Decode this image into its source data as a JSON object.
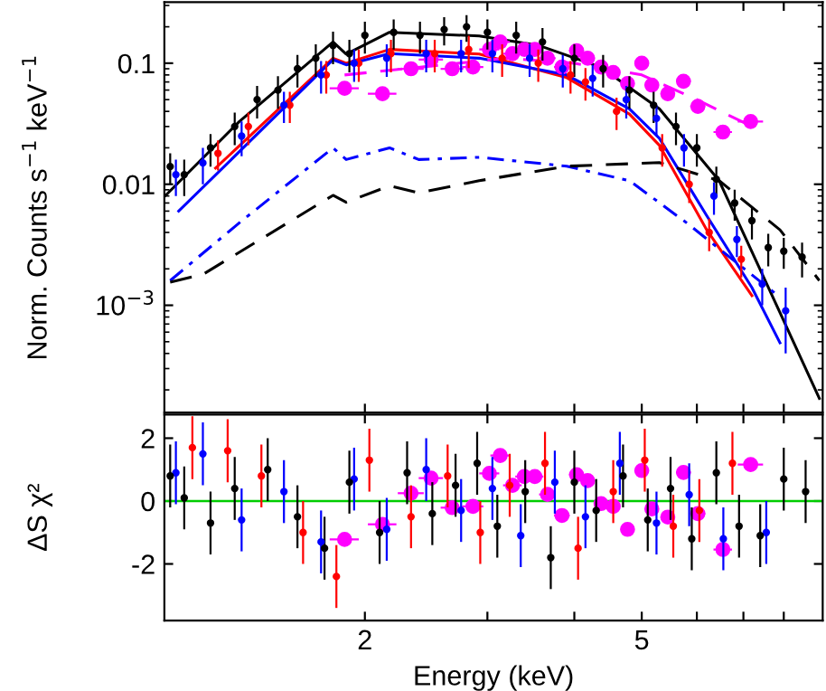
{
  "chart_data": [
    {
      "type": "line",
      "ylabel": "Norm. Counts s$^{−1}$ keV$^{−1}$",
      "log": "xy",
      "xlim": [
        1.03,
        9.1
      ],
      "ylim": [
        0.00013,
        0.32
      ],
      "xticks": [
        {
          "value": 2,
          "label": null
        },
        {
          "value": 3,
          "label": null
        },
        {
          "value": 4,
          "label": null
        },
        {
          "value": 5,
          "label": null
        },
        {
          "value": 6,
          "label": null
        },
        {
          "value": 7,
          "label": null
        },
        {
          "value": 8,
          "label": null
        }
      ],
      "yticks": [
        {
          "value": 0.001,
          "label": "10$^{−3}$"
        },
        0.01,
        0.1
      ],
      "tick_labels": "y",
      "grid": false,
      "legend": false,
      "series": [
        {
          "type": "scatter",
          "marker": "circle",
          "color": "#ff0000",
          "x": [
            1.23,
            1.36,
            1.56,
            1.76,
            1.96,
            2.18,
            2.52,
            2.82,
            3.15,
            3.55,
            3.95,
            4.15,
            4.6,
            5.35,
            5.85,
            6.25,
            6.95
          ],
          "values": [
            0.018,
            0.03,
            0.045,
            0.08,
            0.1,
            0.12,
            0.12,
            0.13,
            0.11,
            0.1,
            0.08,
            0.07,
            0.04,
            0.02,
            0.01,
            0.004,
            0.0024
          ],
          "errors": [
            0.005,
            0.009,
            0.013,
            0.024,
            0.03,
            0.036,
            0.036,
            0.039,
            0.033,
            0.03,
            0.024,
            0.021,
            0.012,
            0.006,
            0.003,
            0.0012,
            0.0007
          ]
        },
        {
          "type": "scatter",
          "marker": "circle",
          "color": "#0000ff",
          "x": [
            1.07,
            1.17,
            1.33,
            1.53,
            1.73,
            1.93,
            2.15,
            2.45,
            2.75,
            3.05,
            3.45,
            3.85,
            4.25,
            4.75,
            5.25,
            5.75,
            6.35,
            6.85,
            7.45,
            8.05
          ],
          "values": [
            0.012,
            0.015,
            0.025,
            0.045,
            0.08,
            0.1,
            0.11,
            0.12,
            0.12,
            0.12,
            0.11,
            0.09,
            0.075,
            0.05,
            0.035,
            0.02,
            0.008,
            0.0035,
            0.0015,
            0.0009
          ],
          "errors": [
            0.004,
            0.005,
            0.008,
            0.013,
            0.024,
            0.03,
            0.033,
            0.036,
            0.036,
            0.036,
            0.033,
            0.027,
            0.022,
            0.015,
            0.01,
            0.006,
            0.0024,
            0.001,
            0.0005,
            0.0005
          ]
        },
        {
          "type": "scatter",
          "marker": "circle",
          "color": "#000000",
          "x": [
            1.05,
            1.1,
            1.2,
            1.3,
            1.4,
            1.5,
            1.6,
            1.7,
            1.8,
            1.9,
            2.0,
            2.2,
            2.4,
            2.6,
            2.8,
            3.0,
            3.3,
            3.6,
            4.0,
            4.4,
            4.8,
            5.2,
            5.6,
            6.0,
            6.4,
            6.8,
            7.2,
            7.6,
            8.0,
            8.5
          ],
          "values": [
            0.014,
            0.012,
            0.02,
            0.03,
            0.05,
            0.06,
            0.09,
            0.11,
            0.14,
            0.12,
            0.17,
            0.18,
            0.17,
            0.19,
            0.2,
            0.18,
            0.17,
            0.15,
            0.11,
            0.09,
            0.06,
            0.045,
            0.03,
            0.02,
            0.011,
            0.007,
            0.005,
            0.003,
            0.0028,
            0.0025
          ],
          "errors": [
            0.004,
            0.004,
            0.006,
            0.009,
            0.015,
            0.018,
            0.027,
            0.033,
            0.042,
            0.036,
            0.05,
            0.05,
            0.05,
            0.05,
            0.05,
            0.05,
            0.05,
            0.045,
            0.033,
            0.027,
            0.018,
            0.013,
            0.009,
            0.006,
            0.003,
            0.002,
            0.0015,
            0.0009,
            0.0008,
            0.0008
          ]
        },
        {
          "type": "scatter",
          "marker": "circle",
          "color": "#ff00ff",
          "x": [
            1.87,
            2.12,
            2.33,
            2.49,
            2.67,
            2.86,
            3.02,
            3.13,
            3.26,
            3.39,
            3.51,
            3.66,
            3.84,
            4.03,
            4.18,
            4.37,
            4.55,
            4.77,
            5.0,
            5.17,
            5.45,
            5.74,
            6.02,
            6.54,
            7.17
          ],
          "values": [
            0.062,
            0.056,
            0.09,
            0.107,
            0.09,
            0.093,
            0.13,
            0.15,
            0.12,
            0.13,
            0.13,
            0.11,
            0.093,
            0.127,
            0.11,
            0.093,
            0.084,
            0.068,
            0.1,
            0.066,
            0.056,
            0.071,
            0.044,
            0.027,
            0.033
          ],
          "xerrors": [
            0.09,
            0.1,
            0.1,
            0.1,
            0.1,
            0.1,
            0.1,
            0.1,
            0.1,
            0.1,
            0.1,
            0.1,
            0.1,
            0.1,
            0.1,
            0.1,
            0.1,
            0.1,
            0.12,
            0.12,
            0.13,
            0.14,
            0.15,
            0.2,
            0.3
          ]
        },
        {
          "line_style": "solid",
          "color": "#000000",
          "x": [
            1.03,
            1.32,
            1.8,
            1.88,
            2.17,
            2.92,
            3.56,
            4.36,
            5.3,
            6.46,
            7.9,
            9.0
          ],
          "values": [
            0.0079,
            0.033,
            0.15,
            0.119,
            0.18,
            0.168,
            0.14,
            0.093,
            0.042,
            0.0107,
            0.00087,
            0.00017
          ]
        },
        {
          "line_style": "solid",
          "color": "#ff0000",
          "x": [
            1.22,
            1.8,
            1.88,
            2.17,
            2.92,
            3.9,
            4.8,
            5.3,
            6.2,
            7.2
          ],
          "values": [
            0.0136,
            0.11,
            0.1,
            0.13,
            0.119,
            0.076,
            0.038,
            0.021,
            0.0042,
            0.0012
          ]
        },
        {
          "line_style": "solid",
          "color": "#0000ff",
          "x": [
            1.08,
            1.8,
            1.88,
            2.17,
            2.92,
            3.9,
            4.8,
            5.3,
            6.2,
            7.2,
            7.9
          ],
          "values": [
            0.006,
            0.107,
            0.097,
            0.12,
            0.11,
            0.08,
            0.042,
            0.024,
            0.0055,
            0.0014,
            0.00049
          ]
        },
        {
          "line_style": "dashdot",
          "color": "#0000ff",
          "x": [
            1.05,
            1.32,
            1.8,
            1.88,
            2.17,
            2.39,
            2.92,
            3.9,
            4.8,
            5.8,
            7.85
          ],
          "values": [
            0.0016,
            0.0048,
            0.02,
            0.016,
            0.02,
            0.016,
            0.0167,
            0.0141,
            0.0107,
            0.0048,
            0.0012
          ]
        },
        {
          "line_style": "dashed",
          "color": "#000000",
          "x": [
            1.05,
            1.17,
            1.8,
            1.88,
            2.17,
            2.39,
            2.92,
            3.9,
            5.3,
            6.46,
            7.9,
            9.0
          ],
          "values": [
            0.00155,
            0.0018,
            0.0081,
            0.0071,
            0.0097,
            0.0085,
            0.0107,
            0.0141,
            0.0151,
            0.0107,
            0.0042,
            0.0016
          ]
        },
        {
          "line_style": "dashed",
          "color": "#ff00ff",
          "x": [
            1.87,
            2.5,
            3.2,
            4.0,
            5.0,
            6.0,
            7.2
          ],
          "values": [
            0.08,
            0.095,
            0.11,
            0.1,
            0.08,
            0.05,
            0.03
          ]
        }
      ]
    },
    {
      "type": "scatter",
      "xlabel": "Energy (keV)",
      "ylabel": "ΔS χ²",
      "log": "x",
      "xlim": [
        1.03,
        9.1
      ],
      "ylim": [
        -3.8,
        2.75
      ],
      "xticks": [
        {
          "value": 2,
          "label": "2"
        },
        {
          "value": 3,
          "label": null
        },
        {
          "value": 4,
          "label": null
        },
        {
          "value": 5,
          "label": "5"
        },
        {
          "value": 6,
          "label": null
        },
        {
          "value": 7,
          "label": null
        },
        {
          "value": 8,
          "label": null
        }
      ],
      "yticks": [
        -2,
        0,
        2
      ],
      "grid": false,
      "legend": false,
      "ref_lines": [
        {
          "axis": "y",
          "value": 0,
          "color": "#00cc00"
        }
      ],
      "series": [
        {
          "marker": "circle",
          "color": "#ff0000",
          "x": [
            1.13,
            1.27,
            1.42,
            1.63,
            1.82,
            2.03,
            2.33,
            2.63,
            2.93,
            3.23,
            3.63,
            4.05,
            4.55,
            5.05,
            5.55,
            6.05,
            6.75
          ],
          "values": [
            1.7,
            1.6,
            0.8,
            -1.0,
            -2.4,
            1.3,
            -0.5,
            0.8,
            -1.0,
            0.5,
            1.2,
            -1.5,
            0.3,
            1.3,
            -0.8,
            -0.3,
            1.2
          ],
          "errors": [
            1,
            1,
            1,
            1,
            1,
            1,
            1,
            1,
            1,
            1,
            1,
            1,
            1,
            1,
            1,
            1,
            1
          ]
        },
        {
          "marker": "circle",
          "color": "#0000ff",
          "x": [
            1.07,
            1.17,
            1.33,
            1.53,
            1.73,
            1.93,
            2.15,
            2.45,
            2.75,
            3.05,
            3.35,
            3.75,
            4.15,
            4.65,
            5.25,
            5.85,
            6.55,
            7.55
          ],
          "values": [
            0.9,
            1.5,
            -0.6,
            0.3,
            -1.3,
            0.7,
            -0.9,
            1.0,
            -0.3,
            0.4,
            -1.1,
            0.6,
            -0.5,
            1.2,
            -0.7,
            0.2,
            -1.2,
            -1.0
          ],
          "errors": [
            1,
            1,
            1,
            1,
            1,
            1,
            1,
            1,
            1,
            1,
            1,
            1,
            1,
            1,
            1,
            1,
            1,
            1
          ]
        },
        {
          "marker": "circle",
          "color": "#000000",
          "x": [
            1.05,
            1.1,
            1.2,
            1.3,
            1.45,
            1.6,
            1.75,
            1.9,
            2.1,
            2.3,
            2.5,
            2.7,
            2.9,
            3.1,
            3.4,
            3.7,
            4.0,
            4.3,
            4.7,
            5.1,
            5.5,
            5.9,
            6.4,
            6.9,
            7.4,
            8.0,
            8.6
          ],
          "values": [
            0.8,
            0.1,
            -0.7,
            0.4,
            1.0,
            -0.5,
            -1.5,
            0.6,
            -1.0,
            0.9,
            -0.4,
            0.5,
            1.2,
            -0.8,
            0.3,
            -1.8,
            0.6,
            -0.3,
            0.8,
            -0.6,
            0.4,
            -1.2,
            0.9,
            -0.8,
            -1.1,
            0.7,
            0.3
          ],
          "errors": [
            1,
            1,
            1,
            1,
            1,
            1,
            1,
            1,
            1,
            1,
            1,
            1,
            1,
            1,
            1,
            1,
            1,
            1,
            1,
            1,
            1,
            1,
            1,
            1,
            1,
            1,
            1
          ]
        },
        {
          "marker": "circle",
          "color": "#ff00ff",
          "x": [
            1.87,
            2.12,
            2.33,
            2.49,
            2.67,
            2.86,
            3.02,
            3.13,
            3.26,
            3.39,
            3.51,
            3.66,
            3.84,
            4.03,
            4.18,
            4.37,
            4.55,
            4.77,
            5.0,
            5.17,
            5.45,
            5.74,
            6.02,
            6.54,
            7.17
          ],
          "values": [
            -1.22,
            -0.74,
            0.25,
            0.73,
            -0.21,
            -0.17,
            0.88,
            1.45,
            0.5,
            0.78,
            0.78,
            0.21,
            -0.46,
            0.84,
            0.65,
            -0.08,
            -0.17,
            -0.9,
            0.97,
            -0.25,
            -0.51,
            0.91,
            -0.4,
            -1.54,
            1.16
          ],
          "xerrors": [
            0.09,
            0.1,
            0.1,
            0.1,
            0.1,
            0.1,
            0.1,
            0.1,
            0.1,
            0.1,
            0.1,
            0.1,
            0.1,
            0.1,
            0.1,
            0.1,
            0.1,
            0.1,
            0.12,
            0.12,
            0.13,
            0.14,
            0.15,
            0.2,
            0.3
          ]
        }
      ]
    }
  ]
}
